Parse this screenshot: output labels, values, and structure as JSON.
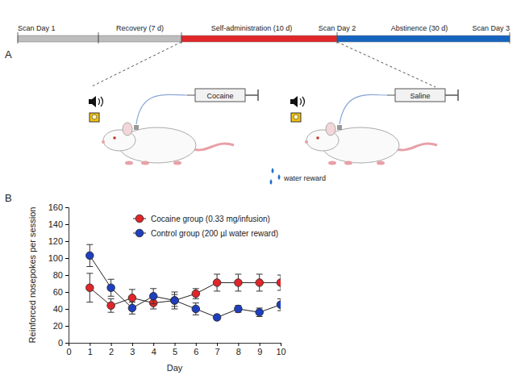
{
  "diagram": {
    "letter": "A",
    "scan_labels": [
      "Scan Day 1",
      "Scan Day 2",
      "Scan Day 3"
    ],
    "phases": [
      {
        "label": "Recovery (7 d)",
        "color": "#bdbdbd"
      },
      {
        "label": "Self-administration (10 d)",
        "color": "#e0262a"
      },
      {
        "label": "Abstinence (30 d)",
        "color": "#1565c0"
      }
    ],
    "syringes": [
      "Cocaine",
      "Saline"
    ],
    "reward_label": "water reward"
  },
  "chart_data": {
    "letter": "B",
    "type": "line",
    "x_label": "Day",
    "y_label": "Reinforced nosepokes per session",
    "x": [
      1,
      2,
      3,
      4,
      5,
      6,
      7,
      8,
      9,
      10
    ],
    "xlim": [
      0,
      10
    ],
    "xticks": [
      0,
      1,
      2,
      3,
      4,
      5,
      6,
      7,
      8,
      9,
      10
    ],
    "ylim": [
      0,
      160
    ],
    "yticks": [
      0,
      20,
      40,
      60,
      80,
      100,
      120,
      140,
      160
    ],
    "legend": "top",
    "marker": "circle",
    "line_style": "solid",
    "series": [
      {
        "name": "Cocaine group (0.33 mg/infusion)",
        "color": "#e0262a",
        "values": [
          65,
          44,
          53,
          47,
          50,
          58,
          71,
          71,
          71,
          71
        ],
        "errors": [
          17,
          8,
          10,
          7,
          7,
          6,
          10,
          10,
          10,
          9
        ]
      },
      {
        "name": "Control group (200 µl water reward)",
        "color": "#1f3fbf",
        "values": [
          103,
          65,
          41,
          55,
          50,
          40,
          30,
          40,
          36,
          45
        ],
        "errors": [
          13,
          10,
          7,
          9,
          10,
          7,
          3,
          4,
          5,
          7
        ]
      }
    ]
  }
}
